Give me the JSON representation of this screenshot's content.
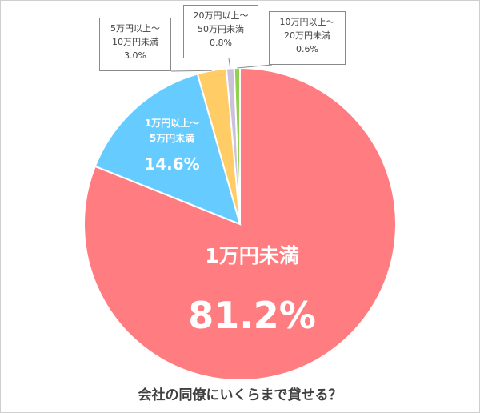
{
  "chart_data": {
    "type": "pie",
    "title": "会社の同僚にいくらまで貸せる？",
    "slices": [
      {
        "label": "1万円未満",
        "label_lines": [
          "1万円未満"
        ],
        "value": 81.2,
        "value_label": "81.2%",
        "color": "#FF7C80"
      },
      {
        "label": "1万円以上～5万円未満",
        "label_lines": [
          "1万円以上～",
          "5万円未満"
        ],
        "value": 14.6,
        "value_label": "14.6%",
        "color": "#66CCFF"
      },
      {
        "label": "5万円以上～10万円未満",
        "label_lines": [
          "5万円以上～",
          "10万円未満"
        ],
        "value": 3.0,
        "value_label": "3.0%",
        "color": "#FFCC66"
      },
      {
        "label": "20万円以上～50万円未満",
        "label_lines": [
          "20万円以上～",
          "50万円未満"
        ],
        "value": 0.8,
        "value_label": "0.8%",
        "color": "#CCC0DA"
      },
      {
        "label": "10万円以上～20万円未満",
        "label_lines": [
          "10万円以上～",
          "20万円未満"
        ],
        "value": 0.6,
        "value_label": "0.6%",
        "color": "#92D050"
      }
    ]
  }
}
